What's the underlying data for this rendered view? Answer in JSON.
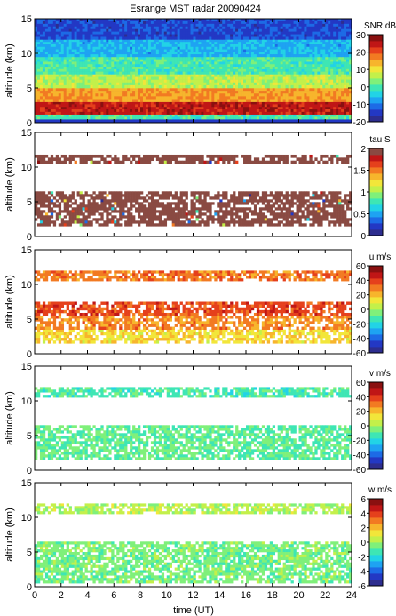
{
  "title": "Esrange MST radar 20090424",
  "xlabel": "time (UT)",
  "x_ticks": [
    0,
    2,
    4,
    6,
    8,
    10,
    12,
    14,
    16,
    18,
    20,
    22,
    24
  ],
  "palette": [
    "#2d2d8f",
    "#2338c4",
    "#1d6be6",
    "#1ea3f2",
    "#22d3e6",
    "#3ee6b4",
    "#7ff07a",
    "#c3f04a",
    "#f2e63a",
    "#f7b52c",
    "#f27a22",
    "#e5401c",
    "#c01616",
    "#8a1010"
  ],
  "tau_color": "#8a4a42",
  "chart_data": [
    {
      "type": "heatmap",
      "panel": "snr",
      "ylabel": "altitude (km)",
      "y_ticks": [
        0,
        5,
        10,
        15
      ],
      "ylim": [
        0,
        15
      ],
      "xlim": [
        0,
        24
      ],
      "colorbar_label": "SNR dB",
      "colorbar_ticks": [
        30,
        20,
        10,
        0,
        -10,
        -20
      ],
      "clim": [
        -22,
        33
      ],
      "layers": [
        {
          "alt_range": [
            0.5,
            1.2
          ],
          "value": 0
        },
        {
          "alt_range": [
            1.2,
            3.0
          ],
          "value": 27
        },
        {
          "alt_range": [
            3.0,
            5.0
          ],
          "value": 17
        },
        {
          "alt_range": [
            5.0,
            7.0
          ],
          "value": 7
        },
        {
          "alt_range": [
            7.0,
            9.5
          ],
          "value": 0
        },
        {
          "alt_range": [
            9.5,
            12.0
          ],
          "value": -7
        },
        {
          "alt_range": [
            12.0,
            15.0
          ],
          "value": -15
        }
      ]
    },
    {
      "type": "heatmap",
      "panel": "tau",
      "ylabel": "altitude (km)",
      "y_ticks": [
        0,
        5,
        10,
        15
      ],
      "ylim": [
        0,
        15
      ],
      "xlim": [
        0,
        24
      ],
      "colorbar_label": "tau S",
      "colorbar_ticks": [
        2,
        1.5,
        1,
        0.5,
        0
      ],
      "clim": [
        0,
        2
      ],
      "layers": [
        {
          "alt_range": [
            1.5,
            6.5
          ],
          "value": 2
        },
        {
          "alt_range": [
            10.5,
            11.8
          ],
          "value": 2
        }
      ]
    },
    {
      "type": "heatmap",
      "panel": "u",
      "ylabel": "altitude (km)",
      "y_ticks": [
        0,
        5,
        10,
        15
      ],
      "ylim": [
        0,
        15
      ],
      "xlim": [
        0,
        24
      ],
      "colorbar_label": "u m/s",
      "colorbar_ticks": [
        60,
        40,
        20,
        0,
        -20,
        -40,
        -60
      ],
      "clim": [
        -60,
        60
      ],
      "layers": [
        {
          "alt_range": [
            1.5,
            3.5
          ],
          "value": 15
        },
        {
          "alt_range": [
            3.5,
            5.5
          ],
          "value": 28
        },
        {
          "alt_range": [
            5.5,
            7.5
          ],
          "value": 38
        },
        {
          "alt_range": [
            10.5,
            12.0
          ],
          "value": 30
        }
      ]
    },
    {
      "type": "heatmap",
      "panel": "v",
      "ylabel": "altitude (km)",
      "y_ticks": [
        0,
        5,
        10,
        15
      ],
      "ylim": [
        0,
        15
      ],
      "xlim": [
        0,
        24
      ],
      "colorbar_label": "v m/s",
      "colorbar_ticks": [
        60,
        40,
        20,
        0,
        -20,
        -40,
        -60
      ],
      "clim": [
        -60,
        60
      ],
      "layers": [
        {
          "alt_range": [
            1.5,
            6.5
          ],
          "value": -8
        },
        {
          "alt_range": [
            10.5,
            12.0
          ],
          "value": -12
        }
      ]
    },
    {
      "type": "heatmap",
      "panel": "w",
      "ylabel": "altitude (km)",
      "y_ticks": [
        0,
        5,
        10,
        15
      ],
      "ylim": [
        0,
        15
      ],
      "xlim": [
        0,
        24
      ],
      "colorbar_label": "w m/s",
      "colorbar_ticks": [
        6,
        4,
        2,
        0,
        -2,
        -4,
        -6
      ],
      "clim": [
        -6,
        6
      ],
      "layers": [
        {
          "alt_range": [
            0.5,
            6.5
          ],
          "value": -0.5
        },
        {
          "alt_range": [
            10.5,
            12.0
          ],
          "value": 0.3
        }
      ]
    }
  ]
}
